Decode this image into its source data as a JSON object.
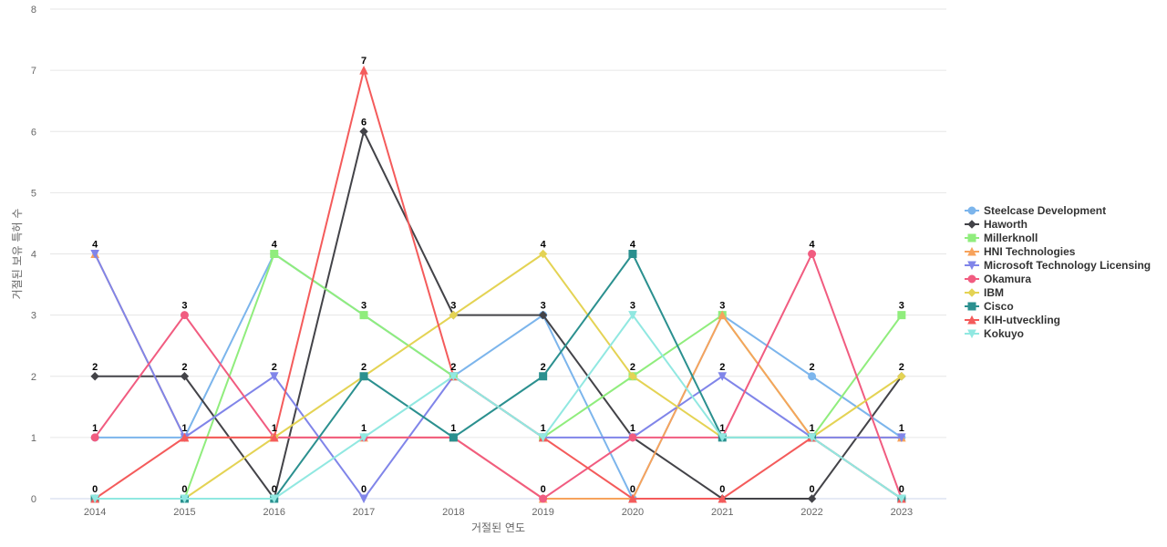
{
  "chart_data": {
    "type": "line",
    "xlabel": "거절된 연도",
    "ylabel": "거절된 보유 특허 수",
    "ylim": [
      0,
      8
    ],
    "yticks": [
      0,
      1,
      2,
      3,
      4,
      5,
      6,
      7,
      8
    ],
    "grid": true,
    "legend_position": "right",
    "categories": [
      "2014",
      "2015",
      "2016",
      "2017",
      "2018",
      "2019",
      "2020",
      "2021",
      "2022",
      "2023"
    ],
    "series": [
      {
        "name": "Steelcase Development",
        "color": "#7cb5ec",
        "marker": "circle",
        "values": [
          1,
          1,
          4,
          3,
          2,
          3,
          0,
          3,
          2,
          1
        ]
      },
      {
        "name": "Haworth",
        "color": "#434348",
        "marker": "diamond",
        "values": [
          2,
          2,
          0,
          6,
          3,
          3,
          1,
          0,
          0,
          2
        ]
      },
      {
        "name": "Millerknoll",
        "color": "#90ed7d",
        "marker": "square",
        "values": [
          0,
          0,
          4,
          3,
          2,
          1,
          2,
          3,
          1,
          3
        ]
      },
      {
        "name": "HNI Technologies",
        "color": "#f7a35c",
        "marker": "triangle",
        "values": [
          4,
          1,
          1,
          1,
          1,
          0,
          0,
          3,
          1,
          1
        ]
      },
      {
        "name": "Microsoft Technology Licensing",
        "color": "#8085e9",
        "marker": "triangle-down",
        "values": [
          4,
          1,
          2,
          0,
          2,
          1,
          1,
          2,
          1,
          1
        ]
      },
      {
        "name": "Okamura",
        "color": "#f15c80",
        "marker": "circle",
        "values": [
          1,
          3,
          1,
          1,
          1,
          0,
          1,
          1,
          4,
          0
        ]
      },
      {
        "name": "IBM",
        "color": "#e4d354",
        "marker": "diamond",
        "values": [
          0,
          0,
          1,
          2,
          3,
          4,
          2,
          1,
          1,
          2
        ]
      },
      {
        "name": "Cisco",
        "color": "#2b908f",
        "marker": "square",
        "values": [
          0,
          0,
          0,
          2,
          1,
          2,
          4,
          1,
          1,
          0
        ]
      },
      {
        "name": "KIH-utveckling",
        "color": "#f45b5b",
        "marker": "triangle",
        "values": [
          0,
          1,
          1,
          7,
          2,
          1,
          0,
          0,
          1,
          0
        ]
      },
      {
        "name": "Kokuyo",
        "color": "#91e8e1",
        "marker": "triangle-down",
        "values": [
          0,
          0,
          0,
          1,
          2,
          1,
          3,
          1,
          1,
          0
        ]
      }
    ],
    "data_labels": [
      {
        "x": "2014",
        "y": 4,
        "text": "4"
      },
      {
        "x": "2014",
        "y": 2,
        "text": "2"
      },
      {
        "x": "2014",
        "y": 1,
        "text": "1"
      },
      {
        "x": "2014",
        "y": 0,
        "text": "0"
      },
      {
        "x": "2015",
        "y": 3,
        "text": "3"
      },
      {
        "x": "2015",
        "y": 2,
        "text": "2"
      },
      {
        "x": "2015",
        "y": 1,
        "text": "1"
      },
      {
        "x": "2015",
        "y": 0,
        "text": "0"
      },
      {
        "x": "2016",
        "y": 4,
        "text": "4"
      },
      {
        "x": "2016",
        "y": 2,
        "text": "2"
      },
      {
        "x": "2016",
        "y": 1,
        "text": "1"
      },
      {
        "x": "2016",
        "y": 0,
        "text": "0"
      },
      {
        "x": "2017",
        "y": 7,
        "text": "7"
      },
      {
        "x": "2017",
        "y": 6,
        "text": "6"
      },
      {
        "x": "2017",
        "y": 3,
        "text": "3"
      },
      {
        "x": "2017",
        "y": 2,
        "text": "2"
      },
      {
        "x": "2017",
        "y": 1,
        "text": "1"
      },
      {
        "x": "2017",
        "y": 0,
        "text": "0"
      },
      {
        "x": "2018",
        "y": 3,
        "text": "3"
      },
      {
        "x": "2018",
        "y": 2,
        "text": "2"
      },
      {
        "x": "2018",
        "y": 1,
        "text": "1"
      },
      {
        "x": "2019",
        "y": 4,
        "text": "4"
      },
      {
        "x": "2019",
        "y": 3,
        "text": "3"
      },
      {
        "x": "2019",
        "y": 2,
        "text": "2"
      },
      {
        "x": "2019",
        "y": 1,
        "text": "1"
      },
      {
        "x": "2019",
        "y": 0,
        "text": "0"
      },
      {
        "x": "2020",
        "y": 4,
        "text": "4"
      },
      {
        "x": "2020",
        "y": 3,
        "text": "3"
      },
      {
        "x": "2020",
        "y": 2,
        "text": "2"
      },
      {
        "x": "2020",
        "y": 1,
        "text": "1"
      },
      {
        "x": "2020",
        "y": 0,
        "text": "0"
      },
      {
        "x": "2021",
        "y": 3,
        "text": "3"
      },
      {
        "x": "2021",
        "y": 2,
        "text": "2"
      },
      {
        "x": "2021",
        "y": 1,
        "text": "1"
      },
      {
        "x": "2021",
        "y": 0,
        "text": "0"
      },
      {
        "x": "2022",
        "y": 4,
        "text": "4"
      },
      {
        "x": "2022",
        "y": 2,
        "text": "2"
      },
      {
        "x": "2022",
        "y": 1,
        "text": "1"
      },
      {
        "x": "2022",
        "y": 0,
        "text": "0"
      },
      {
        "x": "2023",
        "y": 3,
        "text": "3"
      },
      {
        "x": "2023",
        "y": 2,
        "text": "2"
      },
      {
        "x": "2023",
        "y": 1,
        "text": "1"
      },
      {
        "x": "2023",
        "y": 0,
        "text": "0"
      }
    ]
  }
}
